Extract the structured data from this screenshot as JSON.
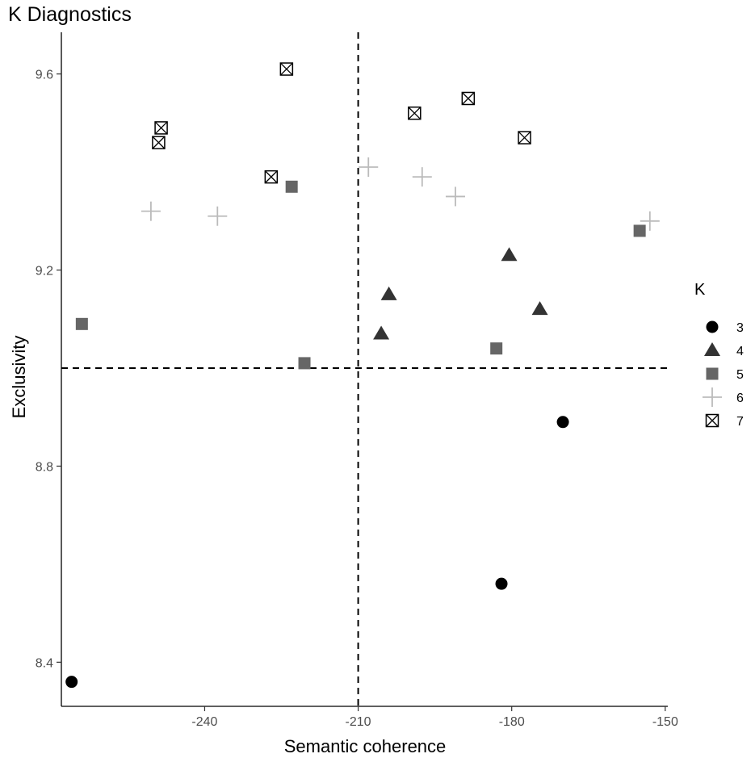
{
  "chart_data": {
    "type": "scatter",
    "title": "K Diagnostics",
    "xlabel": "Semantic coherence",
    "ylabel": "Exclusivity",
    "xlim": [
      -268,
      -149.5
    ],
    "ylim": [
      8.31,
      9.685
    ],
    "xticks": [
      -240,
      -210,
      -180,
      -150
    ],
    "yticks": [
      8.4,
      8.8,
      9.2,
      9.6
    ],
    "xtick_labels": [
      "-240",
      "-210",
      "-180",
      "-150"
    ],
    "ytick_labels": [
      "8.4",
      "8.8",
      "9.2",
      "9.6"
    ],
    "grid": false,
    "reference_lines": {
      "x": -210,
      "y": 9.0,
      "style": "dashed"
    },
    "legend": {
      "title": "K",
      "position": "right",
      "entries": [
        {
          "label": "3",
          "shape": "circle",
          "color": "#000000"
        },
        {
          "label": "4",
          "shape": "triangle",
          "color": "#333333"
        },
        {
          "label": "5",
          "shape": "square",
          "color": "#666666"
        },
        {
          "label": "6",
          "shape": "plus",
          "color": "#bbbbbb"
        },
        {
          "label": "7",
          "shape": "square-cross",
          "color": "#000000"
        }
      ]
    },
    "series": [
      {
        "name": "3",
        "shape": "circle",
        "color": "#000000",
        "points": [
          [
            -266,
            8.36
          ],
          [
            -182,
            8.56
          ],
          [
            -170,
            8.89
          ]
        ]
      },
      {
        "name": "4",
        "shape": "triangle",
        "color": "#333333",
        "points": [
          [
            -204,
            9.15
          ],
          [
            -205.5,
            9.07
          ],
          [
            -180.5,
            9.23
          ],
          [
            -174.5,
            9.12
          ]
        ]
      },
      {
        "name": "5",
        "shape": "square",
        "color": "#666666",
        "points": [
          [
            -264,
            9.09
          ],
          [
            -223,
            9.37
          ],
          [
            -220.5,
            9.01
          ],
          [
            -183,
            9.04
          ],
          [
            -155,
            9.28
          ]
        ]
      },
      {
        "name": "6",
        "shape": "plus",
        "color": "#bbbbbb",
        "points": [
          [
            -250.5,
            9.32
          ],
          [
            -237.5,
            9.31
          ],
          [
            -208,
            9.41
          ],
          [
            -197.5,
            9.39
          ],
          [
            -191,
            9.35
          ],
          [
            -153,
            9.3
          ]
        ]
      },
      {
        "name": "7",
        "shape": "square-cross",
        "color": "#000000",
        "points": [
          [
            -224,
            9.61
          ],
          [
            -248.5,
            9.49
          ],
          [
            -249,
            9.46
          ],
          [
            -227,
            9.39
          ],
          [
            -199,
            9.52
          ],
          [
            -188.5,
            9.55
          ],
          [
            -177.5,
            9.47
          ]
        ]
      }
    ]
  }
}
